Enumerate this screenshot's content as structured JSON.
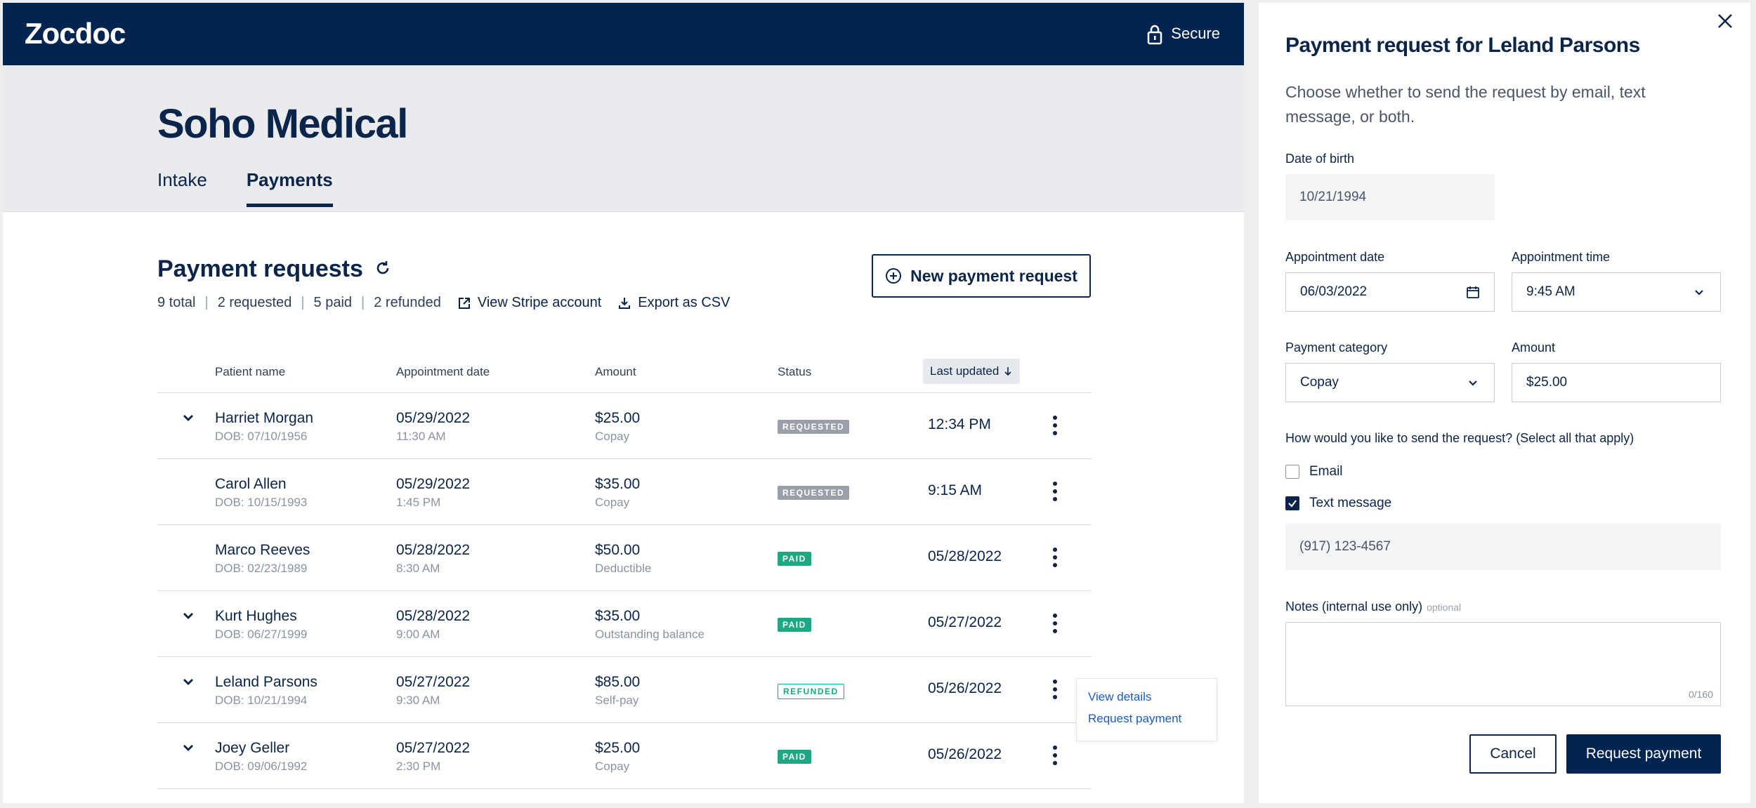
{
  "app": {
    "logo": "Zocdoc",
    "secure_label": "Secure"
  },
  "practice_name": "Soho Medical",
  "tabs": [
    {
      "label": "Intake"
    },
    {
      "label": "Payments"
    }
  ],
  "section": {
    "title": "Payment requests",
    "summary": {
      "total": "9 total",
      "requested": "2 requested",
      "paid": "5 paid",
      "refunded": "2 refunded"
    },
    "view_stripe": "View Stripe account",
    "export_csv": "Export as CSV",
    "new_request": "New payment request"
  },
  "table": {
    "headers": {
      "patient": "Patient name",
      "appt": "Appointment date",
      "amount": "Amount",
      "status": "Status",
      "updated": "Last updated"
    },
    "rows": [
      {
        "name": "Harriet Morgan",
        "dob": "DOB: 07/10/1956",
        "date": "05/29/2022",
        "time": "11:30 AM",
        "amount": "$25.00",
        "category": "Copay",
        "status": "REQUESTED",
        "updated": "12:34 PM",
        "expandable": true
      },
      {
        "name": "Carol Allen",
        "dob": "DOB: 10/15/1993",
        "date": "05/29/2022",
        "time": "1:45 PM",
        "amount": "$35.00",
        "category": "Copay",
        "status": "REQUESTED",
        "updated": "9:15 AM",
        "expandable": false
      },
      {
        "name": "Marco Reeves",
        "dob": "DOB: 02/23/1989",
        "date": "05/28/2022",
        "time": "8:30 AM",
        "amount": "$50.00",
        "category": "Deductible",
        "status": "PAID",
        "updated": "05/28/2022",
        "expandable": false
      },
      {
        "name": "Kurt Hughes",
        "dob": "DOB: 06/27/1999",
        "date": "05/28/2022",
        "time": "9:00 AM",
        "amount": "$35.00",
        "category": "Outstanding balance",
        "status": "PAID",
        "updated": "05/27/2022",
        "expandable": true
      },
      {
        "name": "Leland Parsons",
        "dob": "DOB: 10/21/1994",
        "date": "05/27/2022",
        "time": "9:30 AM",
        "amount": "$85.00",
        "category": "Self-pay",
        "status": "REFUNDED",
        "updated": "05/26/2022",
        "expandable": true
      },
      {
        "name": "Joey Geller",
        "dob": "DOB: 09/06/1992",
        "date": "05/27/2022",
        "time": "2:30 PM",
        "amount": "$25.00",
        "category": "Copay",
        "status": "PAID",
        "updated": "05/26/2022",
        "expandable": true
      }
    ]
  },
  "row_menu": {
    "view_details": "View details",
    "request_payment": "Request payment"
  },
  "panel": {
    "title": "Payment request for Leland Parsons",
    "description": "Choose whether to send the request by email, text message, or both.",
    "dob_label": "Date of birth",
    "dob_value": "10/21/1994",
    "appt_date_label": "Appointment date",
    "appt_date_value": "06/03/2022",
    "appt_time_label": "Appointment time",
    "appt_time_value": "9:45 AM",
    "category_label": "Payment category",
    "category_value": "Copay",
    "amount_label": "Amount",
    "amount_value": "$25.00",
    "send_question": "How would you like to send the request? (Select all that apply)",
    "email_label": "Email",
    "email_checked": false,
    "text_label": "Text message",
    "text_checked": true,
    "phone_value": "(917) 123-4567",
    "notes_label": "Notes (internal use only)",
    "notes_optional": "optional",
    "notes_counter": "0/160",
    "cancel": "Cancel",
    "submit": "Request payment"
  },
  "colors": {
    "navy": "#022451",
    "paid_green": "#1ca880",
    "requested_gray": "#9aa0a9",
    "link_blue": "#1a5cc5"
  }
}
